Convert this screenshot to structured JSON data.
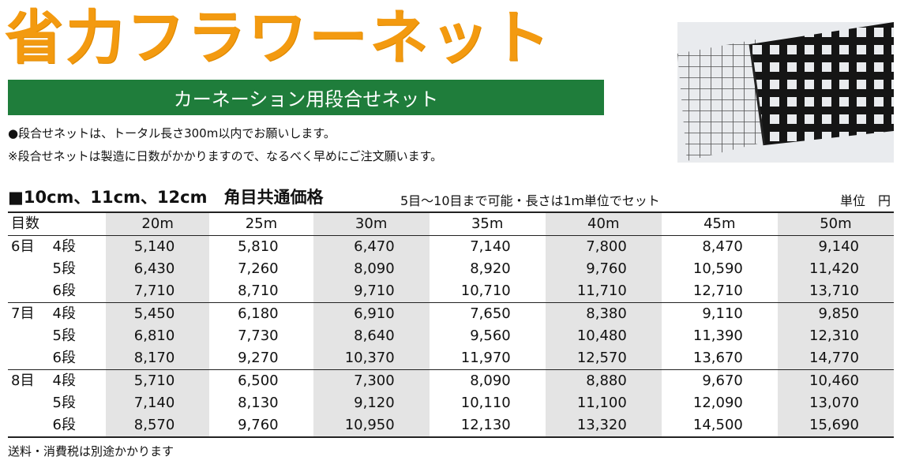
{
  "title": "省力フラワーネット",
  "subtitle": "カーネーション用段合せネット",
  "notes": [
    "●段合せネットは、トータル長さ300m以内でお願いします。",
    "※段合せネットは製造に日数がかかりますので、なるべく早めにご注文願います。"
  ],
  "photo": {
    "icon": "flower-net-photo"
  },
  "table_header": {
    "main": "■10cm、11cm、12cm　角目共通価格",
    "sub": "5目～10目まで可能・長さは1ｍ単位でセット",
    "unit": "単位　円"
  },
  "table": {
    "label_header": "目数",
    "columns": [
      "20m",
      "25m",
      "30m",
      "35m",
      "40m",
      "45m",
      "50m"
    ],
    "groups": [
      {
        "me": "6目",
        "rows": [
          {
            "dan": "4段",
            "values": [
              "5,140",
              "5,810",
              "6,470",
              "7,140",
              "7,800",
              "8,470",
              "9,140"
            ]
          },
          {
            "dan": "5段",
            "values": [
              "6,430",
              "7,260",
              "8,090",
              "8,920",
              "9,760",
              "10,590",
              "11,420"
            ]
          },
          {
            "dan": "6段",
            "values": [
              "7,710",
              "8,710",
              "9,710",
              "10,710",
              "11,710",
              "12,710",
              "13,710"
            ]
          }
        ]
      },
      {
        "me": "7目",
        "rows": [
          {
            "dan": "4段",
            "values": [
              "5,450",
              "6,180",
              "6,910",
              "7,650",
              "8,380",
              "9,110",
              "9,850"
            ]
          },
          {
            "dan": "5段",
            "values": [
              "6,810",
              "7,730",
              "8,640",
              "9,560",
              "10,480",
              "11,390",
              "12,310"
            ]
          },
          {
            "dan": "6段",
            "values": [
              "8,170",
              "9,270",
              "10,370",
              "11,970",
              "12,570",
              "13,670",
              "14,770"
            ]
          }
        ]
      },
      {
        "me": "8目",
        "rows": [
          {
            "dan": "4段",
            "values": [
              "5,710",
              "6,500",
              "7,300",
              "8,090",
              "8,880",
              "9,670",
              "10,460"
            ]
          },
          {
            "dan": "5段",
            "values": [
              "7,140",
              "8,130",
              "9,120",
              "10,110",
              "11,100",
              "12,090",
              "13,070"
            ]
          },
          {
            "dan": "6段",
            "values": [
              "8,570",
              "9,760",
              "10,950",
              "12,130",
              "13,320",
              "14,500",
              "15,690"
            ]
          }
        ]
      }
    ]
  },
  "footer": "送料・消費税は別途かかります"
}
